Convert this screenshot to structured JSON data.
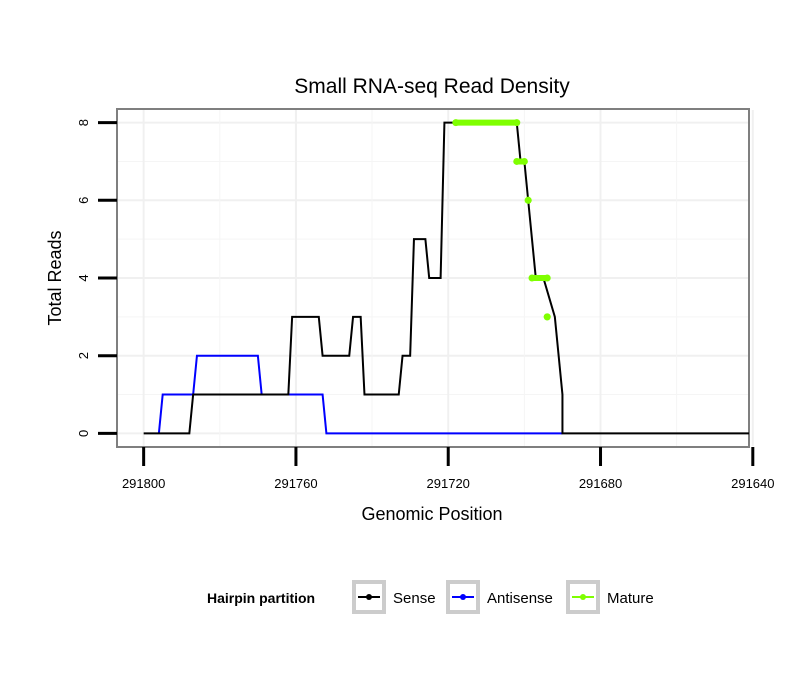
{
  "chart_data": {
    "type": "line",
    "title": "Small RNA-seq Read Density",
    "xlabel": "Genomic Position",
    "ylabel": "Total Reads",
    "xlim": [
      291807,
      291641
    ],
    "x_reversed": true,
    "ylim": [
      -0.35,
      8.35
    ],
    "grid": true,
    "x_ticks": [
      291800,
      291760,
      291720,
      291680,
      291640
    ],
    "x_tick_labels": [
      "291800",
      "291760",
      "291720",
      "291680",
      "291640"
    ],
    "y_ticks": [
      0,
      2,
      4,
      6,
      8
    ],
    "y_tick_labels": [
      "0",
      "2",
      "4",
      "6",
      "8"
    ],
    "legend": {
      "title": "Hairpin partition",
      "position": "bottom",
      "entries": [
        "Sense",
        "Antisense",
        "Mature"
      ]
    },
    "series": [
      {
        "name": "Sense",
        "color": "#000000",
        "x": [
          291800,
          291788,
          291787,
          291762,
          291761,
          291754,
          291753,
          291746,
          291745,
          291743,
          291742,
          291733,
          291732,
          291730,
          291729,
          291726,
          291725,
          291722,
          291721,
          291718,
          291717,
          291702,
          291701,
          291700,
          291699,
          291697,
          291695,
          291692,
          291691,
          291690,
          291690,
          291688,
          291641
        ],
        "y": [
          0,
          0,
          1,
          1,
          3,
          3,
          2,
          2,
          3,
          3,
          1,
          1,
          2,
          2,
          5,
          5,
          4,
          4,
          8,
          8,
          8,
          8,
          7,
          7,
          6,
          4,
          4,
          3,
          2,
          1,
          0,
          0,
          0
        ]
      },
      {
        "name": "Antisense",
        "color": "#0000ff",
        "x": [
          291796,
          291795,
          291787,
          291786,
          291770,
          291769,
          291761,
          291760,
          291753,
          291752,
          291690
        ],
        "y": [
          0,
          1,
          1,
          2,
          2,
          1,
          1,
          1,
          1,
          0,
          0
        ]
      },
      {
        "name": "Mature",
        "color": "#7fff00",
        "segments": [
          {
            "x": [
              291718,
              291702
            ],
            "y": [
              8,
              8
            ]
          },
          {
            "x": [
              291702,
              291700
            ],
            "y": [
              7,
              7
            ]
          },
          {
            "x": [
              291699,
              291699
            ],
            "y": [
              6,
              6
            ]
          },
          {
            "x": [
              291698,
              291694
            ],
            "y": [
              4,
              4
            ]
          },
          {
            "x": [
              291694,
              291694
            ],
            "y": [
              3,
              3
            ]
          }
        ]
      }
    ]
  }
}
